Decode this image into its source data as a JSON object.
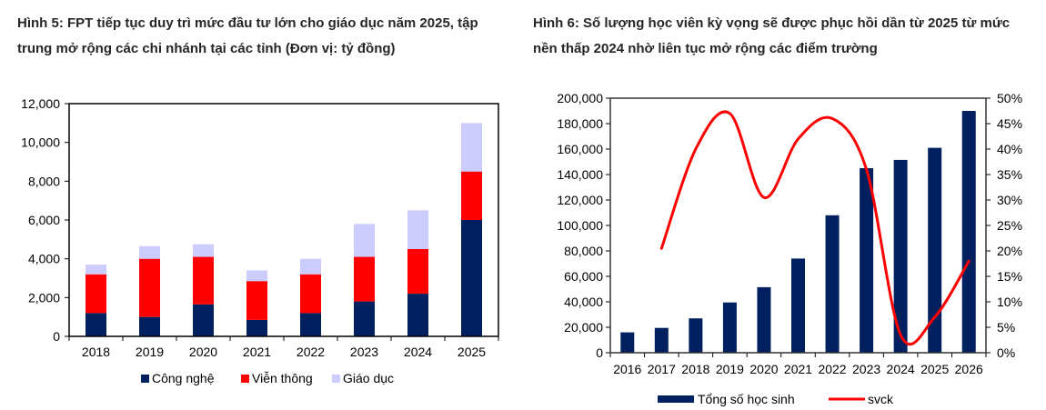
{
  "chart_data": [
    {
      "type": "bar",
      "stacked": true,
      "title_prefix": "Hình 5",
      "title": ": FPT tiếp tục duy trì mức đầu tư lớn cho giáo dục năm 2025, tập trung mở rộng các chi nhánh tại các tỉnh (Đơn vị: tỷ đồng)",
      "xlabel": "",
      "ylabel": "",
      "categories": [
        "2018",
        "2019",
        "2020",
        "2021",
        "2022",
        "2023",
        "2024",
        "2025"
      ],
      "series": [
        {
          "name": "Công nghệ",
          "color": "#002060",
          "values": [
            1200,
            1000,
            1650,
            850,
            1200,
            1800,
            2200,
            6000
          ]
        },
        {
          "name": "Viễn thông",
          "color": "#ff0000",
          "values": [
            2000,
            3000,
            2450,
            2000,
            2000,
            2300,
            2300,
            2500
          ]
        },
        {
          "name": "Giáo dục",
          "color": "#ccccff",
          "values": [
            500,
            650,
            650,
            550,
            800,
            1700,
            2000,
            2500
          ]
        }
      ],
      "ylim": [
        0,
        12000
      ],
      "yticks": [
        0,
        2000,
        4000,
        6000,
        8000,
        10000,
        12000
      ],
      "ytick_labels": [
        "0",
        "2,000",
        "4,000",
        "6,000",
        "8,000",
        "10,000",
        "12,000"
      ],
      "grid": false,
      "legend_position": "bottom"
    },
    {
      "type": "bar",
      "combo": "bar+line",
      "title_prefix": "Hình 6",
      "title": ": Số lượng học viên kỳ vọng sẽ được phục hồi dần từ 2025 từ mức nền thấp 2024 nhờ liên tục mở rộng các điểm trường",
      "xlabel": "",
      "ylabel": "",
      "categories": [
        "2016",
        "2017",
        "2018",
        "2019",
        "2020",
        "2021",
        "2022",
        "2023",
        "2024",
        "2025",
        "2026"
      ],
      "series": [
        {
          "name": "Tổng số học sinh",
          "type": "bar",
          "axis": "left",
          "color": "#002060",
          "values": [
            16000,
            19500,
            27000,
            39500,
            51500,
            74000,
            108000,
            145000,
            151500,
            161000,
            190000
          ]
        },
        {
          "name": "svck",
          "type": "line",
          "axis": "right",
          "color": "#ff0000",
          "values": [
            null,
            0.205,
            0.4,
            0.47,
            0.305,
            0.42,
            0.46,
            0.36,
            0.035,
            0.07,
            0.18
          ]
        }
      ],
      "ylim": [
        0,
        200000
      ],
      "yticks": [
        0,
        20000,
        40000,
        60000,
        80000,
        100000,
        120000,
        140000,
        160000,
        180000,
        200000
      ],
      "ytick_labels": [
        "0",
        "20,000",
        "40,000",
        "60,000",
        "80,000",
        "100,000",
        "120,000",
        "140,000",
        "160,000",
        "180,000",
        "200,000"
      ],
      "y2lim": [
        0,
        0.5
      ],
      "y2ticks": [
        0,
        0.05,
        0.1,
        0.15,
        0.2,
        0.25,
        0.3,
        0.35,
        0.4,
        0.45,
        0.5
      ],
      "y2tick_labels": [
        "0%",
        "5%",
        "10%",
        "15%",
        "20%",
        "25%",
        "30%",
        "35%",
        "40%",
        "45%",
        "50%"
      ],
      "grid": false,
      "legend_position": "bottom"
    }
  ]
}
